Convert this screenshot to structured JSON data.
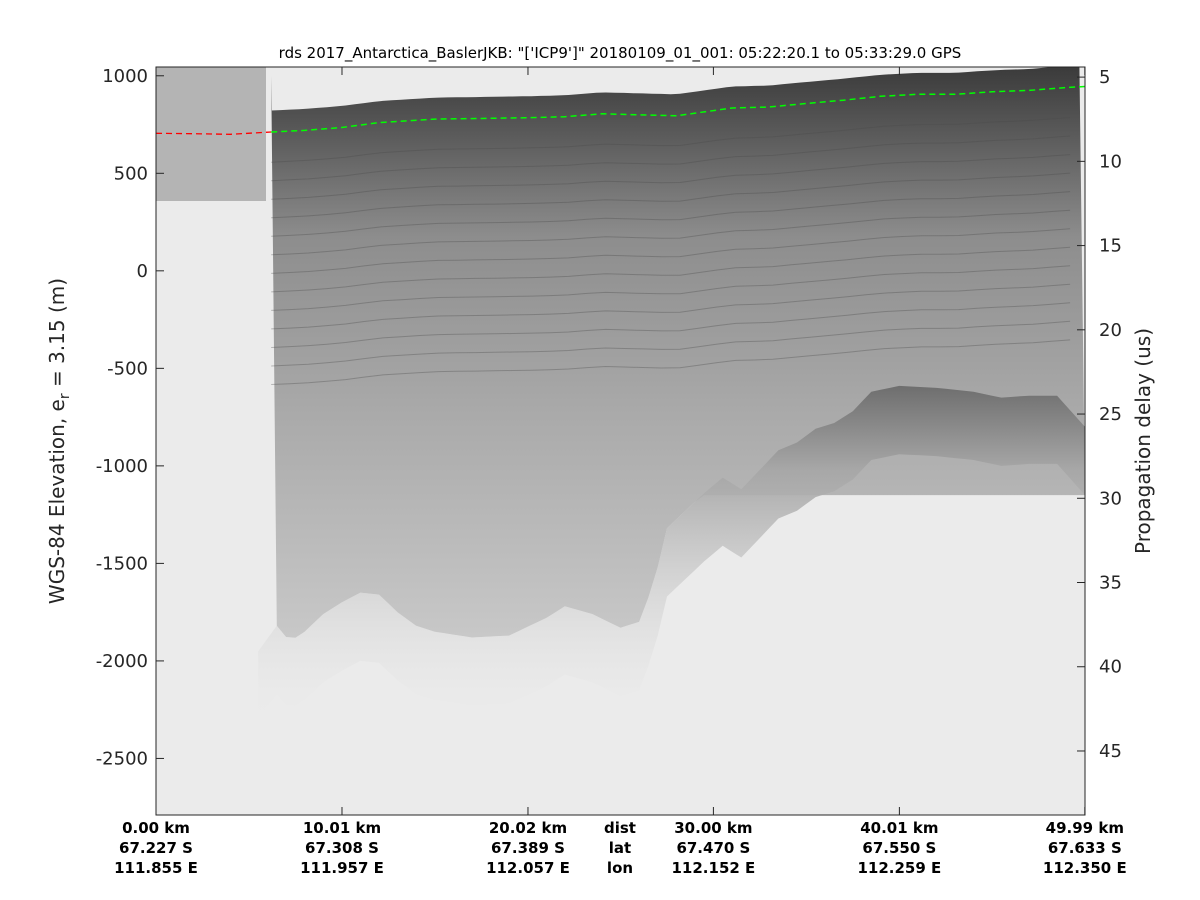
{
  "chart_data": {
    "type": "line",
    "title": "rds 2017_Antarctica_BaslerJKB: \"['ICP9']\"  20180109_01_001: 05:22:20.1 to 05:33:29.0 GPS",
    "ylabel_left": "WGS-84 Elevation, e",
    "ylabel_left_sub": "r",
    "ylabel_left_tail": " = 3.15 (m)",
    "ylabel_right": "Propagation delay (us)",
    "xlim_km": [
      0,
      50
    ],
    "ylim": [
      -2790,
      1045
    ],
    "ylim_right": [
      4.4,
      48.8
    ],
    "left_ticks": [
      1000,
      500,
      0,
      -500,
      -1000,
      -1500,
      -2000,
      -2500
    ],
    "left_tick_labels": [
      "1000",
      "500",
      "0",
      "-500",
      "-1000",
      "-1500",
      "-2000",
      "-2500"
    ],
    "right_ticks": [
      5,
      10,
      15,
      20,
      25,
      30,
      35,
      40,
      45
    ],
    "right_tick_labels": [
      "5",
      "10",
      "15",
      "20",
      "25",
      "30",
      "35",
      "40",
      "45"
    ],
    "x_ticks_km": [
      0,
      10.01,
      20.02,
      30.0,
      40.01,
      49.99
    ],
    "bottom_rows": {
      "dist": {
        "label": "dist",
        "values": [
          "0.00 km",
          "10.01 km",
          "20.02 km",
          "30.00 km",
          "40.01 km",
          "49.99 km"
        ]
      },
      "lat": {
        "label": "lat",
        "values": [
          "67.227 S",
          "67.308 S",
          "67.389 S",
          "67.470 S",
          "67.550 S",
          "67.633 S"
        ]
      },
      "lon": {
        "label": "lon",
        "values": [
          "111.855 E",
          "111.957 E",
          "112.057 E",
          "112.152 E",
          "112.259 E",
          "112.350 E"
        ]
      }
    },
    "surface_reference": {
      "color": "#ff0000",
      "style": "dashed",
      "x_km": [
        0,
        2,
        4,
        6.2
      ],
      "y": [
        705,
        703,
        700,
        712
      ]
    },
    "surface_pick": {
      "color": "#00ff00",
      "style": "dashed",
      "x_km": [
        6.2,
        8,
        10,
        12,
        15,
        18,
        20,
        22,
        24,
        26,
        28,
        29.5,
        31,
        33,
        35,
        37,
        39,
        41,
        43,
        45,
        47,
        49,
        50
      ],
      "y": [
        712,
        720,
        735,
        760,
        778,
        782,
        785,
        790,
        805,
        800,
        795,
        815,
        835,
        840,
        858,
        875,
        895,
        905,
        905,
        918,
        925,
        940,
        945
      ]
    },
    "bed_echo": {
      "x_km": [
        5.5,
        6.5,
        7.2,
        8,
        9,
        10,
        11,
        12,
        13,
        14,
        15,
        17,
        19,
        21,
        22,
        23.5,
        25,
        26,
        26.8,
        27.5,
        28.5,
        29.5,
        30.5,
        31.5,
        32.5,
        33.5,
        34.5,
        35.5,
        36.5,
        37.5,
        38.5,
        40,
        42,
        44,
        45.5,
        47,
        48.5,
        50
      ],
      "y": [
        -1950,
        -1820,
        -1900,
        -1850,
        -1760,
        -1700,
        -1650,
        -1660,
        -1750,
        -1820,
        -1850,
        -1880,
        -1870,
        -1780,
        -1720,
        -1760,
        -1830,
        -1800,
        -1600,
        -1320,
        -1230,
        -1140,
        -1060,
        -1120,
        -1020,
        -920,
        -880,
        -810,
        -780,
        -720,
        -620,
        -590,
        -600,
        -620,
        -650,
        -640,
        -640,
        -800
      ]
    },
    "colormap": "gray"
  }
}
